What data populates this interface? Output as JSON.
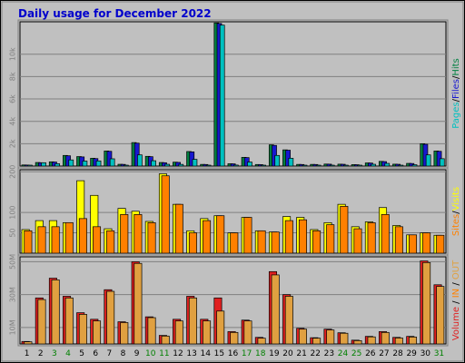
{
  "chart_data": {
    "type": "bar",
    "title": "Daily usage for December 2022",
    "categories": [
      "1",
      "2",
      "3",
      "4",
      "5",
      "6",
      "7",
      "8",
      "9",
      "10",
      "11",
      "12",
      "13",
      "14",
      "15",
      "16",
      "17",
      "18",
      "19",
      "20",
      "21",
      "22",
      "23",
      "24",
      "25",
      "26",
      "27",
      "28",
      "29",
      "30",
      "31"
    ],
    "weekend_days": [
      "3",
      "4",
      "10",
      "11",
      "17",
      "18",
      "24",
      "25",
      "31"
    ],
    "panels": [
      {
        "id": "hits",
        "ylim": [
          0,
          12900
        ],
        "yticks": [
          2000,
          4000,
          6000,
          8000,
          10000
        ],
        "ytick_labels": [
          "2k",
          "4k",
          "6k",
          "8k",
          "10k"
        ],
        "grid": true,
        "legend": [
          {
            "text": "Pages",
            "color": "#00c0c0"
          },
          {
            "text": "Files",
            "color": "#1818d0"
          },
          {
            "text": "Hits",
            "color": "#008040"
          }
        ],
        "series": [
          {
            "name": "Hits",
            "color": "#008040",
            "values": [
              100,
              320,
              380,
              950,
              850,
              700,
              1350,
              160,
              2100,
              870,
              320,
              350,
              1300,
              150,
              12800,
              210,
              780,
              140,
              1900,
              1450,
              150,
              150,
              180,
              170,
              130,
              280,
              420,
              170,
              240,
              2000,
              1350
            ]
          },
          {
            "name": "Files",
            "color": "#1818d0",
            "values": [
              90,
              300,
              360,
              920,
              820,
              670,
              1320,
              150,
              2050,
              840,
              300,
              330,
              1270,
              140,
              12750,
              200,
              760,
              130,
              1850,
              1420,
              140,
              140,
              170,
              160,
              120,
              270,
              400,
              160,
              230,
              1950,
              1320
            ]
          },
          {
            "name": "Pages",
            "color": "#00c0c0",
            "values": [
              40,
              300,
              210,
              550,
              450,
              460,
              650,
              60,
              1000,
              480,
              160,
              150,
              600,
              60,
              12600,
              90,
              360,
              60,
              950,
              700,
              50,
              60,
              80,
              70,
              60,
              160,
              240,
              80,
              120,
              1000,
              660
            ]
          }
        ]
      },
      {
        "id": "visits",
        "ylim": [
          0,
          205
        ],
        "yticks": [
          50,
          100,
          200
        ],
        "ytick_labels": [
          "50",
          "100",
          "200"
        ],
        "grid": true,
        "legend": [
          {
            "text": "Sites",
            "color": "#ff8000"
          },
          {
            "text": "Visits",
            "color": "#ffff00"
          }
        ],
        "series": [
          {
            "name": "Visits",
            "color": "#ffff00",
            "values": [
              58,
              80,
              80,
              75,
              178,
              142,
              60,
              110,
              103,
              78,
              195,
              120,
              55,
              85,
              92,
              50,
              88,
              55,
              52,
              90,
              88,
              58,
              75,
              120,
              65,
              77,
              112,
              68,
              45,
              50,
              44
            ]
          },
          {
            "name": "Sites",
            "color": "#ff8000",
            "values": [
              55,
              65,
              65,
              75,
              85,
              65,
              55,
              95,
              95,
              75,
              190,
              120,
              50,
              80,
              92,
              50,
              88,
              55,
              52,
              80,
              82,
              55,
              70,
              115,
              60,
              75,
              95,
              65,
              45,
              50,
              44
            ]
          }
        ]
      },
      {
        "id": "volume",
        "ylim": [
          0,
          53000000
        ],
        "yticks": [
          10000000,
          30000000,
          50000000
        ],
        "ytick_labels": [
          "10M",
          "30M",
          "50M"
        ],
        "grid": true,
        "legend": [
          {
            "text": "Volume",
            "color": "#e02020"
          },
          {
            "text": "IN",
            "color": "#ff8000"
          },
          {
            "text": "OUT",
            "color": "#e0a040"
          }
        ],
        "series": [
          {
            "name": "Volume",
            "color": "#e02020",
            "values": [
              1500000,
              28000000,
              40000000,
              29000000,
              19000000,
              15000000,
              33000000,
              13500000,
              50000000,
              16500000,
              5200000,
              15000000,
              29000000,
              15000000,
              28000000,
              7500000,
              14500000,
              4000000,
              44000000,
              30000000,
              9500000,
              3800000,
              9000000,
              6800000,
              2300000,
              4600000,
              7500000,
              4000000,
              4600000,
              50500000,
              36000000
            ]
          },
          {
            "name": "IN",
            "color": "#e0a040",
            "values": [
              1300000,
              27000000,
              39000000,
              28000000,
              18000000,
              14000000,
              32000000,
              13000000,
              49000000,
              16000000,
              4800000,
              14000000,
              28000000,
              14000000,
              20000000,
              7000000,
              14000000,
              3500000,
              42000000,
              29000000,
              9000000,
              3500000,
              8500000,
              6500000,
              2000000,
              4300000,
              7000000,
              3600000,
              4200000,
              49500000,
              35000000
            ]
          }
        ]
      }
    ]
  }
}
